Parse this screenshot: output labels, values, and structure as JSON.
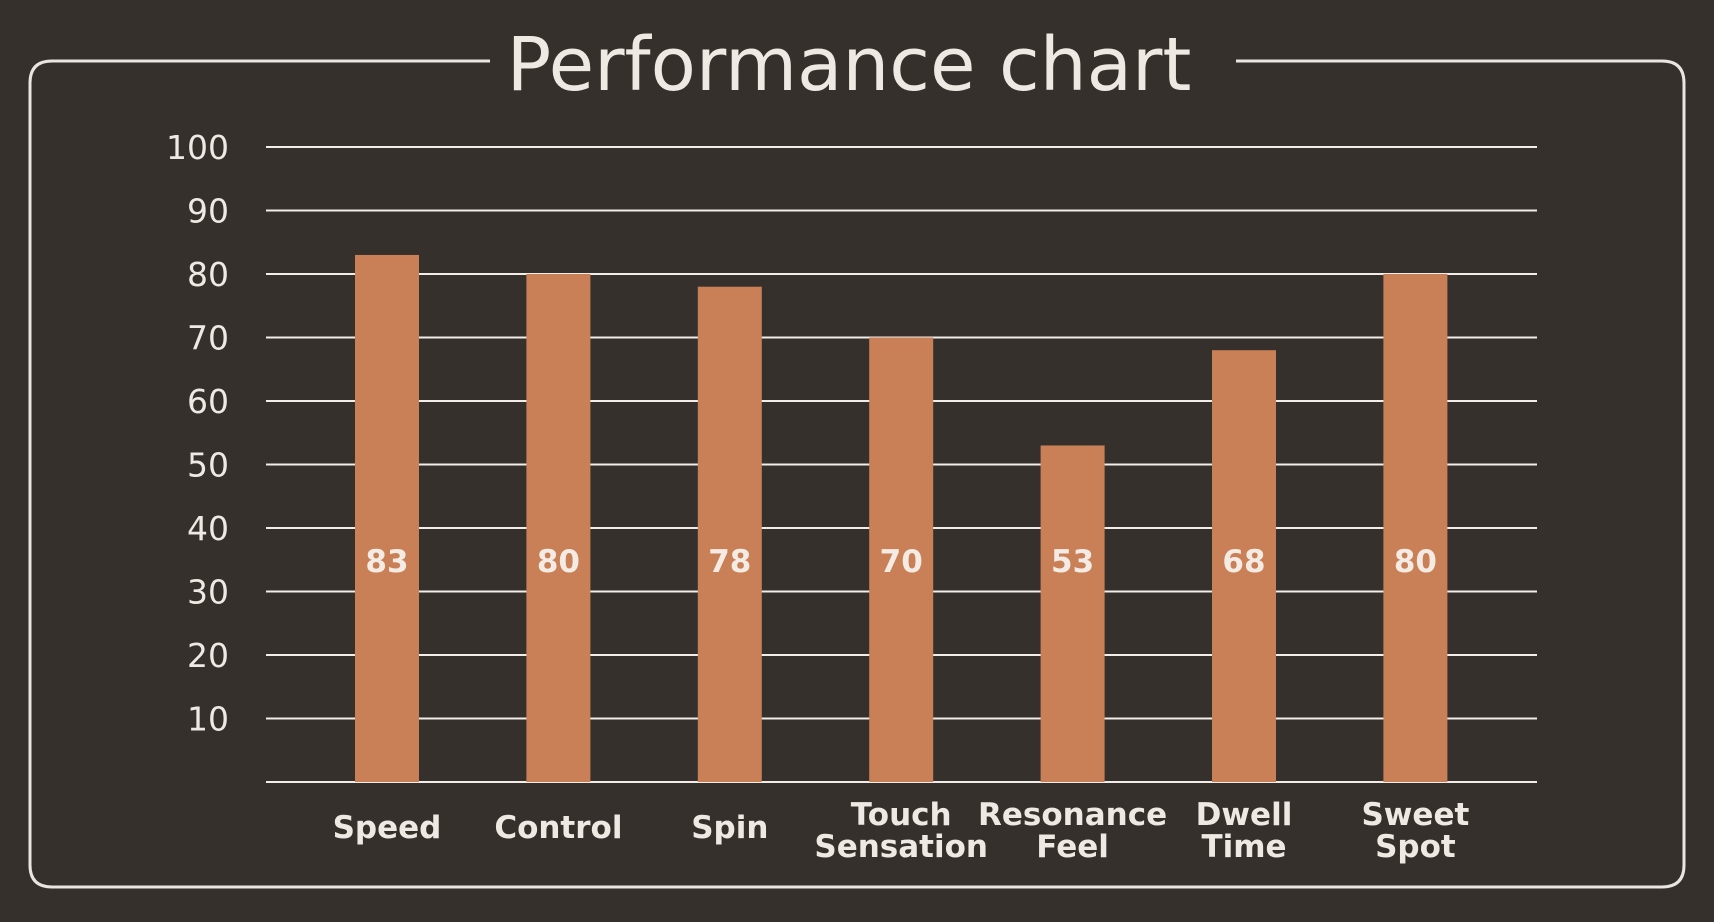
{
  "chart_data": {
    "type": "bar",
    "title": "Performance chart",
    "xlabel": "",
    "ylabel": "",
    "ylim": [
      0,
      100
    ],
    "yticks": [
      10,
      20,
      30,
      40,
      50,
      60,
      70,
      80,
      90,
      100
    ],
    "categories": [
      [
        "Speed"
      ],
      [
        "Control"
      ],
      [
        "Spin"
      ],
      [
        "Touch",
        "Sensation"
      ],
      [
        "Resonance",
        "Feel"
      ],
      [
        "Dwell",
        "Time"
      ],
      [
        "Sweet",
        "Spot"
      ]
    ],
    "values": [
      83,
      80,
      78,
      70,
      53,
      68,
      80
    ],
    "data_labels": [
      "83",
      "80",
      "78",
      "70",
      "53",
      "68",
      "80"
    ],
    "grid": true,
    "legend": "none"
  },
  "colors": {
    "background": "#35302c",
    "bar": "#c98057",
    "gridline": "#f2ede8",
    "frame": "#e9e5e1",
    "text": "#efe9e3"
  }
}
